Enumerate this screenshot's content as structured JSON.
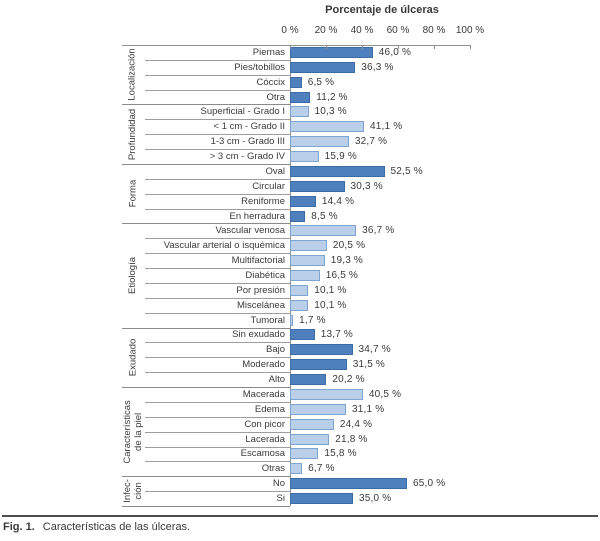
{
  "caption": {
    "prefix": "Fig. 1.",
    "text": "Características de las úlceras."
  },
  "chart_data": {
    "type": "bar",
    "orientation": "horizontal",
    "title": "Porcentaje de úlceras",
    "xlabel": "Porcentaje de úlceras",
    "ylabel": "",
    "x_axis": {
      "min": 0,
      "max": 100,
      "tick_step": 20,
      "ticks": [
        "0 %",
        "20 %",
        "40 %",
        "60 %",
        "80 %",
        "100 %"
      ],
      "grid": false
    },
    "legend": "none",
    "colors": {
      "dark_fill": "#4d80bd",
      "dark_border": "#3d6ba5",
      "light_fill": "#b9cfe9",
      "light_border": "#7fa4d1",
      "line_gray": "#8f8f8f"
    },
    "groups": [
      {
        "label": "Localización",
        "shade": "dark",
        "rows": [
          {
            "label": "Piernas",
            "value": 46.0,
            "value_label": "46,0 %"
          },
          {
            "label": "Pies/tobillos",
            "value": 36.3,
            "value_label": "36,3 %"
          },
          {
            "label": "Cóccix",
            "value": 6.5,
            "value_label": "6,5 %"
          },
          {
            "label": "Otra",
            "value": 11.2,
            "value_label": "11,2 %"
          }
        ]
      },
      {
        "label": "Profundidad",
        "shade": "light",
        "rows": [
          {
            "label": "Superficial - Grado I",
            "value": 10.3,
            "value_label": "10,3 %"
          },
          {
            "label": "< 1 cm - Grado II",
            "value": 41.1,
            "value_label": "41,1 %"
          },
          {
            "label": "1-3 cm - Grado III",
            "value": 32.7,
            "value_label": "32,7 %"
          },
          {
            "label": "> 3 cm - Grado IV",
            "value": 15.9,
            "value_label": "15,9 %"
          }
        ]
      },
      {
        "label": "Forma",
        "shade": "dark",
        "rows": [
          {
            "label": "Oval",
            "value": 52.5,
            "value_label": "52,5 %"
          },
          {
            "label": "Circular",
            "value": 30.3,
            "value_label": "30,3 %"
          },
          {
            "label": "Reniforme",
            "value": 14.4,
            "value_label": "14,4 %"
          },
          {
            "label": "En herradura",
            "value": 8.5,
            "value_label": "8,5 %"
          }
        ]
      },
      {
        "label": "Etiología",
        "shade": "light",
        "rows": [
          {
            "label": "Vascular venosa",
            "value": 36.7,
            "value_label": "36,7 %"
          },
          {
            "label": "Vascular arterial o isquémica",
            "value": 20.5,
            "value_label": "20,5 %"
          },
          {
            "label": "Multifactorial",
            "value": 19.3,
            "value_label": "19,3 %"
          },
          {
            "label": "Diabética",
            "value": 16.5,
            "value_label": "16,5 %"
          },
          {
            "label": "Por presión",
            "value": 10.1,
            "value_label": "10,1 %"
          },
          {
            "label": "Miscelánea",
            "value": 10.1,
            "value_label": "10,1 %"
          },
          {
            "label": "Tumoral",
            "value": 1.7,
            "value_label": "1,7 %"
          }
        ]
      },
      {
        "label": "Exudado",
        "shade": "dark",
        "rows": [
          {
            "label": "Sin exudado",
            "value": 13.7,
            "value_label": "13,7 %"
          },
          {
            "label": "Bajo",
            "value": 34.7,
            "value_label": "34,7 %"
          },
          {
            "label": "Moderado",
            "value": 31.5,
            "value_label": "31,5 %"
          },
          {
            "label": "Alto",
            "value": 20.2,
            "value_label": "20,2 %"
          }
        ]
      },
      {
        "label": "Características\nde la piel",
        "shade": "light",
        "rows": [
          {
            "label": "Macerada",
            "value": 40.5,
            "value_label": "40,5 %"
          },
          {
            "label": "Edema",
            "value": 31.1,
            "value_label": "31,1 %"
          },
          {
            "label": "Con picor",
            "value": 24.4,
            "value_label": "24,4 %"
          },
          {
            "label": "Lacerada",
            "value": 21.8,
            "value_label": "21,8 %"
          },
          {
            "label": "Escamosa",
            "value": 15.8,
            "value_label": "15,8 %"
          },
          {
            "label": "Otras",
            "value": 6.7,
            "value_label": "6,7 %"
          }
        ]
      },
      {
        "label": "Infec-\nción",
        "shade": "dark",
        "rows": [
          {
            "label": "No",
            "value": 65.0,
            "value_label": "65,0 %"
          },
          {
            "label": "Si",
            "value": 35.0,
            "value_label": "35,0 %"
          }
        ]
      }
    ]
  }
}
